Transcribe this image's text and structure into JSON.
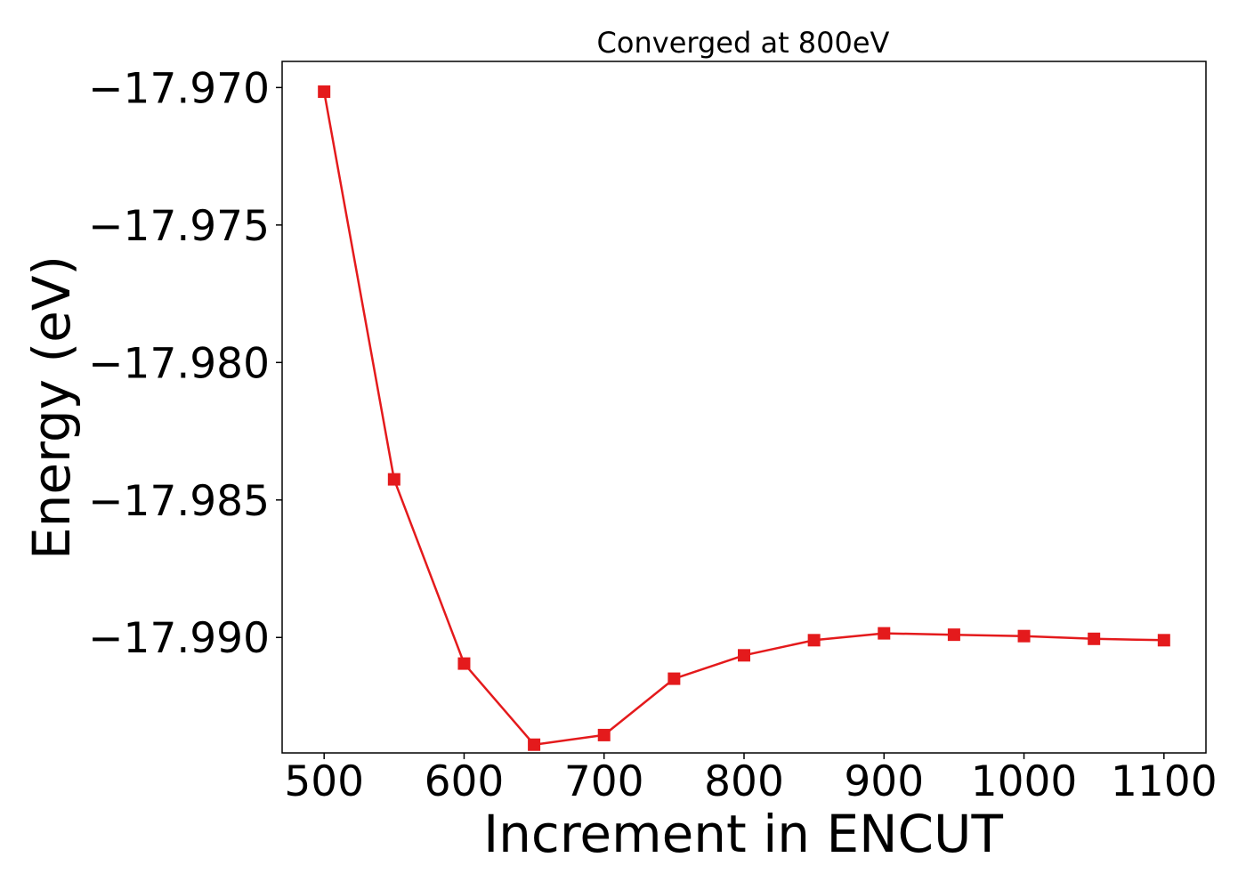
{
  "chart_data": {
    "type": "line",
    "title": "Converged at 800eV",
    "xlabel": "Increment in ENCUT",
    "ylabel": "Energy (eV)",
    "x": [
      500,
      550,
      600,
      650,
      700,
      750,
      800,
      850,
      900,
      950,
      1000,
      1050,
      1100
    ],
    "series": [
      {
        "values": [
          -17.97015,
          -17.98425,
          -17.99095,
          -17.9939,
          -17.99355,
          -17.9915,
          -17.99065,
          -17.9901,
          -17.98985,
          -17.9899,
          -17.98995,
          -17.99005,
          -17.9901
        ],
        "color": "#e41a1c",
        "marker": "square"
      }
    ],
    "xlim": [
      470,
      1130
    ],
    "ylim": [
      -17.9942,
      -17.96905
    ],
    "xticks": [
      500,
      600,
      700,
      800,
      900,
      1000,
      1100
    ],
    "xtick_labels": [
      "500",
      "600",
      "700",
      "800",
      "900",
      "1000",
      "1100"
    ],
    "yticks": [
      -17.97,
      -17.975,
      -17.98,
      -17.985,
      -17.99
    ],
    "ytick_labels": [
      "−17.970",
      "−17.975",
      "−17.980",
      "−17.985",
      "−17.990"
    ],
    "grid": false,
    "legend": "none"
  }
}
